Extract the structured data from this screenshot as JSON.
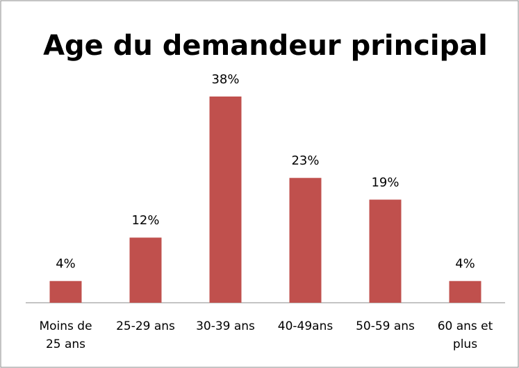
{
  "chart_data": {
    "type": "bar",
    "title": "Age du demandeur principal",
    "categories": [
      "Moins de 25 ans",
      "25-29 ans",
      "30-39 ans",
      "40-49ans",
      "50-59 ans",
      "60 ans et plus"
    ],
    "values": [
      4,
      12,
      38,
      23,
      19,
      4
    ],
    "value_labels": [
      "4%",
      "12%",
      "38%",
      "23%",
      "19%",
      "4%"
    ],
    "color": "#c0504d"
  }
}
